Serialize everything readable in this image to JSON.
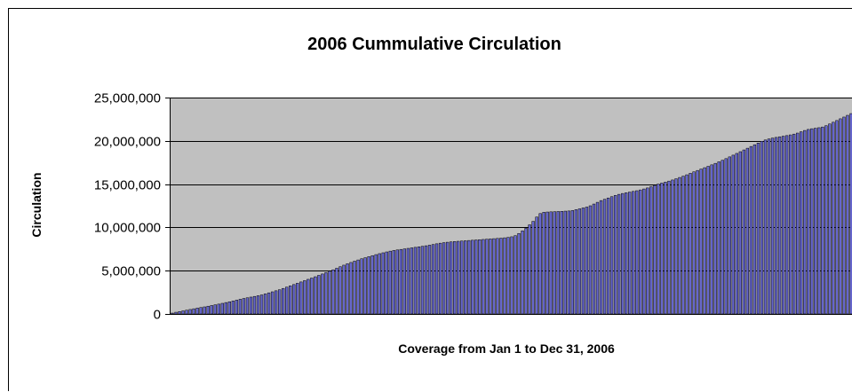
{
  "chart_data": {
    "type": "bar",
    "title": "2006 Cummulative Circulation",
    "xlabel": "Coverage from Jan 1 to Dec 31, 2006",
    "ylabel": "Circulation",
    "ylim": [
      0,
      25000000
    ],
    "yticks": [
      0,
      5000000,
      10000000,
      15000000,
      20000000,
      25000000
    ],
    "ytick_labels": [
      "0",
      "5,000,000",
      "10,000,000",
      "15,000,000",
      "20,000,000",
      "25,000,000"
    ],
    "grid": true,
    "legend": "none",
    "plot_background": "#c0c0c0",
    "bar_color": "#6666cc",
    "bar_edge_color": "#000000",
    "series": [
      {
        "values": [
          100000,
          200000,
          280000,
          360000,
          440000,
          520000,
          600000,
          680000,
          750000,
          820000,
          900000,
          980000,
          1060000,
          1140000,
          1230000,
          1320000,
          1410000,
          1500000,
          1600000,
          1700000,
          1790000,
          1870000,
          1950000,
          2030000,
          2110000,
          2200000,
          2320000,
          2440000,
          2560000,
          2680000,
          2800000,
          2950000,
          3100000,
          3250000,
          3400000,
          3550000,
          3700000,
          3850000,
          4000000,
          4150000,
          4300000,
          4460000,
          4620000,
          4780000,
          4940000,
          5100000,
          5280000,
          5460000,
          5640000,
          5800000,
          5950000,
          6100000,
          6240000,
          6380000,
          6500000,
          6620000,
          6740000,
          6860000,
          6970000,
          7070000,
          7170000,
          7260000,
          7340000,
          7400000,
          7460000,
          7520000,
          7580000,
          7640000,
          7700000,
          7760000,
          7820000,
          7880000,
          7950000,
          8030000,
          8110000,
          8180000,
          8240000,
          8290000,
          8330000,
          8370000,
          8400000,
          8430000,
          8460000,
          8490000,
          8520000,
          8550000,
          8580000,
          8610000,
          8640000,
          8670000,
          8700000,
          8730000,
          8760000,
          8800000,
          8850000,
          8920000,
          9050000,
          9300000,
          9600000,
          9900000,
          10300000,
          10700000,
          11200000,
          11600000,
          11750000,
          11780000,
          11800000,
          11820000,
          11840000,
          11860000,
          11880000,
          11900000,
          11950000,
          12050000,
          12150000,
          12250000,
          12350000,
          12500000,
          12700000,
          12900000,
          13100000,
          13250000,
          13400000,
          13550000,
          13700000,
          13820000,
          13920000,
          14000000,
          14080000,
          14160000,
          14240000,
          14330000,
          14440000,
          14560000,
          14700000,
          14850000,
          15000000,
          15120000,
          15230000,
          15350000,
          15480000,
          15620000,
          15770000,
          15920000,
          16080000,
          16250000,
          16420000,
          16580000,
          16740000,
          16900000,
          17060000,
          17230000,
          17400000,
          17580000,
          17760000,
          17950000,
          18150000,
          18350000,
          18550000,
          18750000,
          18950000,
          19150000,
          19350000,
          19550000,
          19750000,
          19950000,
          20100000,
          20220000,
          20320000,
          20400000,
          20470000,
          20540000,
          20610000,
          20690000,
          20780000,
          20900000,
          21050000,
          21200000,
          21320000,
          21400000,
          21460000,
          21520000,
          21600000,
          21750000,
          21950000,
          22150000,
          22350000,
          22550000,
          22750000,
          22950000,
          23150000
        ]
      }
    ]
  }
}
